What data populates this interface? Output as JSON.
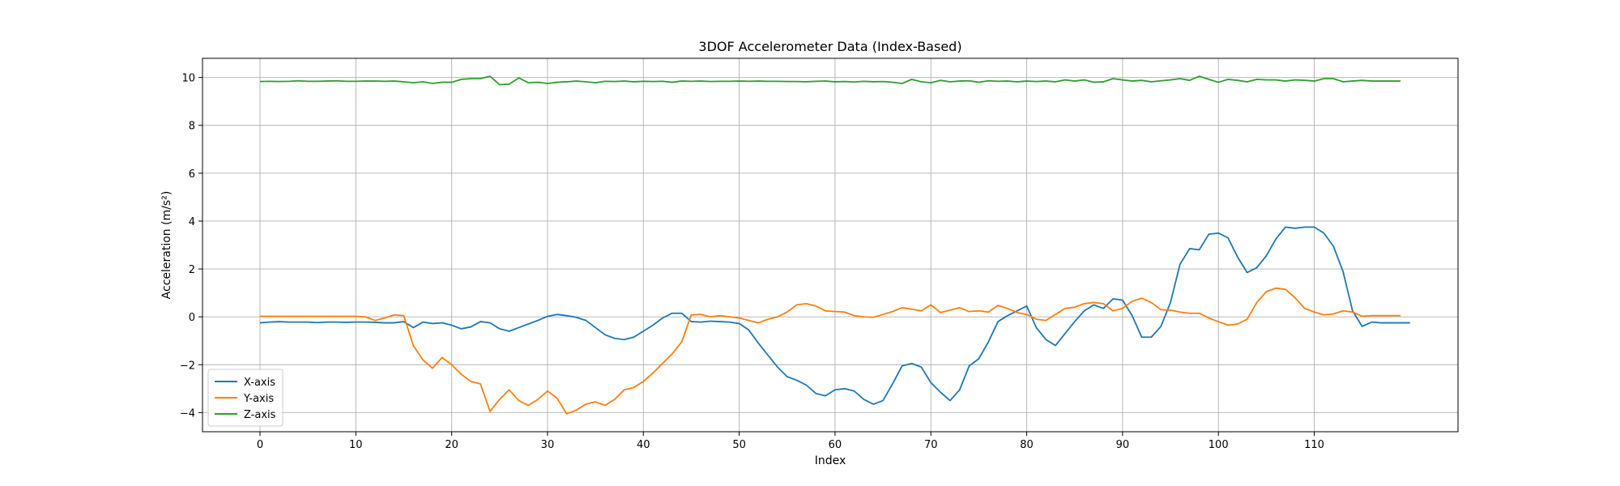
{
  "chart_data": {
    "type": "line",
    "title": "3DOF Accelerometer Data (Index-Based)",
    "xlabel": "Index",
    "ylabel": "Acceleration (m/s²)",
    "xlim": [
      -6,
      125
    ],
    "ylim": [
      -4.8,
      10.8
    ],
    "xticks": [
      0,
      10,
      20,
      30,
      40,
      50,
      60,
      70,
      80,
      90,
      100,
      110
    ],
    "yticks": [
      -4,
      -2,
      0,
      2,
      4,
      6,
      8,
      10
    ],
    "grid": true,
    "legend_position": "lower-left",
    "x_start": 0,
    "series": [
      {
        "name": "X-axis",
        "color": "#1f77b4",
        "values": [
          -0.25,
          -0.22,
          -0.2,
          -0.22,
          -0.22,
          -0.22,
          -0.24,
          -0.22,
          -0.22,
          -0.23,
          -0.22,
          -0.22,
          -0.23,
          -0.25,
          -0.25,
          -0.2,
          -0.45,
          -0.22,
          -0.28,
          -0.25,
          -0.35,
          -0.5,
          -0.42,
          -0.2,
          -0.25,
          -0.5,
          -0.6,
          -0.45,
          -0.3,
          -0.15,
          0.02,
          0.1,
          0.05,
          -0.02,
          -0.15,
          -0.45,
          -0.75,
          -0.9,
          -0.95,
          -0.85,
          -0.6,
          -0.35,
          -0.05,
          0.15,
          0.15,
          -0.2,
          -0.22,
          -0.18,
          -0.2,
          -0.22,
          -0.28,
          -0.55,
          -1.1,
          -1.6,
          -2.1,
          -2.5,
          -2.65,
          -2.85,
          -3.2,
          -3.3,
          -3.05,
          -3.0,
          -3.1,
          -3.45,
          -3.65,
          -3.5,
          -2.8,
          -2.05,
          -1.95,
          -2.1,
          -2.75,
          -3.15,
          -3.5,
          -3.05,
          -2.05,
          -1.75,
          -1.05,
          -0.2,
          0.05,
          0.25,
          0.45,
          -0.45,
          -0.95,
          -1.2,
          -0.7,
          -0.2,
          0.25,
          0.5,
          0.35,
          0.75,
          0.7,
          0.05,
          -0.85,
          -0.85,
          -0.4,
          0.6,
          2.2,
          2.85,
          2.8,
          3.45,
          3.5,
          3.3,
          2.5,
          1.85,
          2.05,
          2.55,
          3.25,
          3.75,
          3.7,
          3.75,
          3.75,
          3.5,
          2.95,
          1.9,
          0.25,
          -0.4,
          -0.22,
          -0.25,
          -0.25,
          -0.25,
          -0.25
        ]
      },
      {
        "name": "Y-axis",
        "color": "#ff7f0e",
        "values": [
          0.02,
          0.02,
          0.02,
          0.02,
          0.02,
          0.02,
          0.02,
          0.02,
          0.02,
          0.02,
          0.02,
          0.0,
          -0.15,
          -0.05,
          0.08,
          0.05,
          -1.2,
          -1.8,
          -2.15,
          -1.7,
          -2.0,
          -2.4,
          -2.7,
          -2.8,
          -3.95,
          -3.45,
          -3.05,
          -3.5,
          -3.7,
          -3.45,
          -3.1,
          -3.4,
          -4.05,
          -3.9,
          -3.65,
          -3.55,
          -3.7,
          -3.45,
          -3.05,
          -2.95,
          -2.7,
          -2.35,
          -1.95,
          -1.55,
          -1.05,
          0.08,
          0.1,
          0.0,
          0.05,
          0.0,
          -0.05,
          -0.15,
          -0.25,
          -0.1,
          0.0,
          0.2,
          0.5,
          0.55,
          0.45,
          0.25,
          0.22,
          0.2,
          0.05,
          0.0,
          -0.02,
          0.1,
          0.22,
          0.38,
          0.32,
          0.25,
          0.5,
          0.18,
          0.28,
          0.38,
          0.22,
          0.25,
          0.2,
          0.48,
          0.35,
          0.18,
          0.1,
          -0.1,
          -0.15,
          0.1,
          0.35,
          0.4,
          0.55,
          0.6,
          0.55,
          0.25,
          0.35,
          0.65,
          0.78,
          0.6,
          0.3,
          0.28,
          0.2,
          0.15,
          0.15,
          -0.05,
          -0.2,
          -0.35,
          -0.3,
          -0.1,
          0.6,
          1.05,
          1.2,
          1.15,
          0.8,
          0.35,
          0.2,
          0.08,
          0.12,
          0.25,
          0.2,
          0.02,
          0.05,
          0.05,
          0.05,
          0.05
        ]
      },
      {
        "name": "Z-axis",
        "color": "#2ca02c",
        "values": [
          9.83,
          9.84,
          9.83,
          9.84,
          9.86,
          9.84,
          9.84,
          9.85,
          9.86,
          9.84,
          9.84,
          9.85,
          9.85,
          9.84,
          9.85,
          9.82,
          9.78,
          9.82,
          9.75,
          9.8,
          9.8,
          9.92,
          9.95,
          9.95,
          10.05,
          9.7,
          9.72,
          9.98,
          9.78,
          9.8,
          9.75,
          9.8,
          9.82,
          9.85,
          9.82,
          9.78,
          9.84,
          9.83,
          9.85,
          9.82,
          9.84,
          9.83,
          9.84,
          9.8,
          9.85,
          9.84,
          9.85,
          9.83,
          9.84,
          9.84,
          9.85,
          9.84,
          9.85,
          9.84,
          9.84,
          9.83,
          9.83,
          9.82,
          9.84,
          9.85,
          9.82,
          9.83,
          9.81,
          9.84,
          9.82,
          9.83,
          9.8,
          9.75,
          9.92,
          9.82,
          9.78,
          9.88,
          9.82,
          9.85,
          9.86,
          9.8,
          9.86,
          9.84,
          9.85,
          9.82,
          9.85,
          9.83,
          9.85,
          9.82,
          9.9,
          9.85,
          9.9,
          9.8,
          9.82,
          9.95,
          9.9,
          9.85,
          9.88,
          9.82,
          9.86,
          9.9,
          9.95,
          9.88,
          10.05,
          9.92,
          9.8,
          9.92,
          9.88,
          9.82,
          9.92,
          9.9,
          9.9,
          9.85,
          9.9,
          9.88,
          9.85,
          9.95,
          9.95,
          9.82,
          9.85,
          9.88,
          9.85,
          9.85,
          9.85,
          9.85
        ]
      }
    ]
  }
}
